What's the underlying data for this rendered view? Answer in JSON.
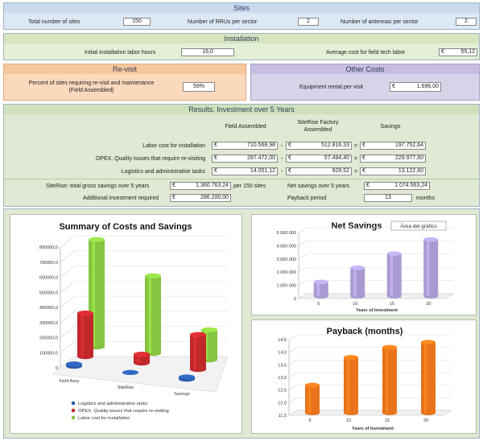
{
  "sites": {
    "title": "Sites",
    "total_sites_label": "Total number of sites",
    "total_sites_value": "150",
    "rrus_label": "Number of RRUs per sector",
    "rrus_value": "2",
    "antennas_label": "Number of antennas per sector",
    "antennas_value": "2"
  },
  "installation": {
    "title": "Installation",
    "hours_label": "Initial installation labor hours",
    "hours_value": "16,0",
    "cost_label": "Average cost for field tech labor",
    "currency": "€",
    "cost_value": "55,12"
  },
  "revisit": {
    "title": "Re-visit",
    "label_line1": "Percent of sites requiring re-visit and maintenance",
    "label_line2": "(Field Assembled)",
    "value": "59%"
  },
  "other_costs": {
    "title": "Other Costs",
    "rental_label": "Equipment rental per visit",
    "currency": "€",
    "rental_value": "1.696,00"
  },
  "results": {
    "title": "Results.  Investment over 5 Years",
    "col_field": "Field Assembled",
    "col_factory_line1": "SiteRise Factory",
    "col_factory_line2": "Assembled",
    "col_savings": "Savings",
    "currency": "€",
    "minus": "-",
    "equals": "=",
    "rows": [
      {
        "label": "Labor cost for installation",
        "field": "710.568,98",
        "factory": "512.816,33",
        "savings": "197.752,64"
      },
      {
        "label": "OPEX. Quality issues that require re-visiting",
        "field": "287.472,00",
        "factory": "57.494,40",
        "savings": "229.977,60"
      },
      {
        "label": "Logistics and administrative tasks",
        "field": "14.051,12",
        "factory": "928,52",
        "savings": "13.122,60"
      }
    ],
    "gross_label": "SiteRise: total gross savings over 5 years",
    "gross_value": "1.360.763,24",
    "gross_suffix": "per 150 sites",
    "additional_label": "Additional investment required",
    "additional_value": "286.200,00",
    "net_label": "Net savings over 5 years",
    "net_value": "1.074.563,24",
    "payback_label": "Payback period",
    "payback_value": "13",
    "payback_unit": "months"
  },
  "colors": {
    "sites_bg": "#dce8f5",
    "installation_bg": "#e4efd6",
    "revisit_bg": "#fad9bd",
    "other_bg": "#d9d3ea",
    "results_bg": "#dfe9d3",
    "red": "#c0282b",
    "green": "#86c440",
    "blue": "#2a5aa8",
    "purple": "#a99ad1",
    "orange": "#e8731a"
  },
  "chart_data": [
    {
      "type": "bar",
      "title": "Summary of Costs and Savings",
      "categories": [
        "Field Assy",
        "SiteRise",
        "Savings"
      ],
      "series": [
        {
          "name": "Logistics and administrative tasks",
          "values": [
            14051.12,
            928.52,
            13122.6
          ]
        },
        {
          "name": "OPEX. Quality issues that require re-visiting",
          "values": [
            287472,
            57494.4,
            229977.6
          ]
        },
        {
          "name": "Labor cost for installation",
          "values": [
            710568.98,
            512816.33,
            197752.64
          ]
        }
      ],
      "y_ticks": [
        "0",
        "100000,0",
        "200000,0",
        "300000,0",
        "400000,0",
        "500000,0",
        "600000,0",
        "700000,0",
        "800000,0"
      ],
      "ylim": [
        0,
        800000
      ],
      "legend": "bottom"
    },
    {
      "type": "bar",
      "title": "Net Savings",
      "categories": [
        "5",
        "10",
        "15",
        "20"
      ],
      "values": [
        1074563,
        2149126,
        3223690,
        4298253
      ],
      "y_ticks": [
        "0",
        "1.000.000",
        "2.000.000",
        "3.000.000",
        "4.000.000",
        "5.000.000"
      ],
      "ylim": [
        0,
        5000000
      ],
      "xlabel": "Years of Investment",
      "tooltip": "Área del gráfico"
    },
    {
      "type": "bar",
      "title": "Payback (months)",
      "categories": [
        "5",
        "10",
        "15",
        "20"
      ],
      "values": [
        12.6,
        13.7,
        14.1,
        14.3
      ],
      "y_ticks": [
        "11,5",
        "12,0",
        "12,5",
        "13,0",
        "13,5",
        "14,0",
        "14,5"
      ],
      "ylim": [
        11.5,
        14.5
      ],
      "xlabel": "Years of Investment"
    }
  ]
}
